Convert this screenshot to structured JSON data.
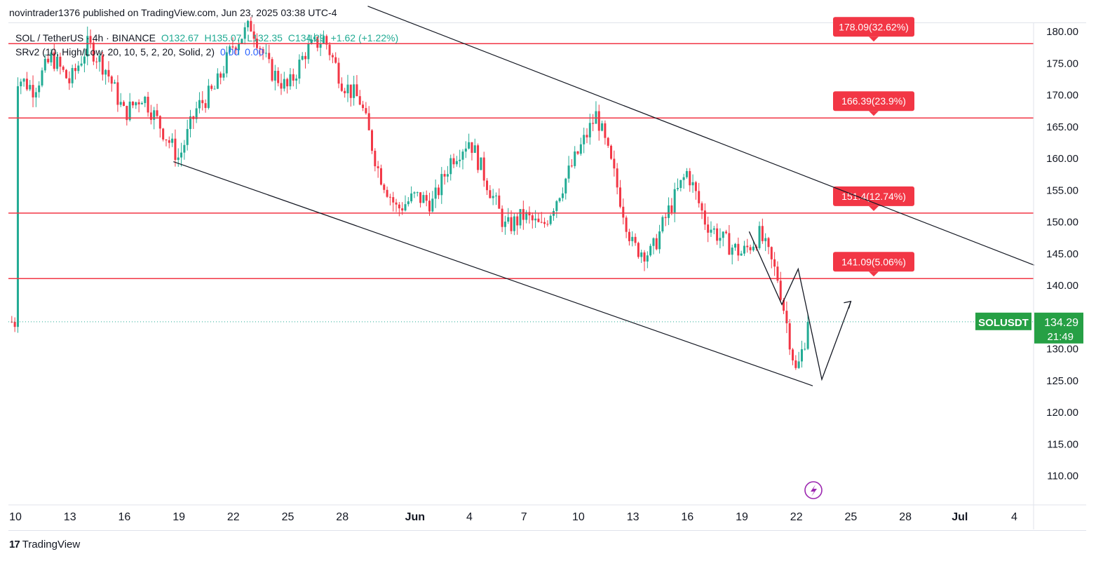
{
  "header": {
    "published_by": "novintrader1376 published on TradingView.com, Jun 23, 2025 03:38 UTC-4"
  },
  "legend": {
    "symbol": "SOL / TetherUS · 4h · BINANCE",
    "open": "O132.67",
    "high": "H135.07",
    "low": "L132.35",
    "close": "C134.29",
    "change": "+1.62 (+1.22%)",
    "indicator": "SRv2 (10, High/Low, 20, 10, 5, 2, 20, Solid, 2)",
    "ind_val1": "0.00",
    "ind_val2": "0.00"
  },
  "footer": {
    "brand": "TradingView"
  },
  "colors": {
    "up": "#22ab94",
    "down": "#f23645",
    "level_line": "#f23645",
    "trendline": "#131722",
    "price_tag": "#26a045"
  },
  "chart_data": {
    "type": "candlestick",
    "symbol": "SOLUSDT",
    "interval": "4h",
    "y_axis": {
      "min": 105,
      "max": 182,
      "ticks": [
        "180.00",
        "175.00",
        "170.00",
        "165.00",
        "160.00",
        "155.00",
        "150.00",
        "145.00",
        "140.00",
        "135.00",
        "130.00",
        "125.00",
        "120.00",
        "115.00",
        "110.00"
      ]
    },
    "x_axis": {
      "start": "2025-05-10",
      "end": "2025-07-05",
      "ticks": [
        {
          "label": "10",
          "day": 0
        },
        {
          "label": "13",
          "day": 3
        },
        {
          "label": "16",
          "day": 6
        },
        {
          "label": "19",
          "day": 9
        },
        {
          "label": "22",
          "day": 12
        },
        {
          "label": "25",
          "day": 15
        },
        {
          "label": "28",
          "day": 18
        },
        {
          "label": "Jun",
          "day": 22
        },
        {
          "label": "4",
          "day": 25
        },
        {
          "label": "7",
          "day": 28
        },
        {
          "label": "10",
          "day": 31
        },
        {
          "label": "13",
          "day": 34
        },
        {
          "label": "16",
          "day": 37
        },
        {
          "label": "19",
          "day": 40
        },
        {
          "label": "22",
          "day": 43
        },
        {
          "label": "25",
          "day": 46
        },
        {
          "label": "28",
          "day": 49
        },
        {
          "label": "Jul",
          "day": 52
        },
        {
          "label": "4",
          "day": 55
        }
      ]
    },
    "price_path": [
      [
        0,
        173
      ],
      [
        1,
        171
      ],
      [
        2,
        176
      ],
      [
        3,
        172
      ],
      [
        4,
        178
      ],
      [
        5,
        174
      ],
      [
        6,
        167
      ],
      [
        7,
        170
      ],
      [
        8,
        165
      ],
      [
        9,
        160
      ],
      [
        10,
        168
      ],
      [
        11,
        171
      ],
      [
        12,
        178
      ],
      [
        13,
        181
      ],
      [
        14,
        174
      ],
      [
        15,
        171
      ],
      [
        16,
        177
      ],
      [
        17,
        179
      ],
      [
        18,
        172
      ],
      [
        19,
        169
      ],
      [
        20,
        158
      ],
      [
        21,
        152
      ],
      [
        22,
        154
      ],
      [
        23,
        153
      ],
      [
        24,
        160
      ],
      [
        25,
        163
      ],
      [
        26,
        156
      ],
      [
        27,
        149
      ],
      [
        28,
        151
      ],
      [
        29,
        149
      ],
      [
        30,
        155
      ],
      [
        31,
        161
      ],
      [
        32,
        167
      ],
      [
        33,
        157
      ],
      [
        34,
        146
      ],
      [
        35,
        145
      ],
      [
        36,
        152
      ],
      [
        37,
        158
      ],
      [
        38,
        150
      ],
      [
        39,
        147
      ],
      [
        40,
        145
      ],
      [
        41,
        148
      ],
      [
        42,
        141
      ],
      [
        43,
        126
      ],
      [
        43.7,
        134.3
      ]
    ],
    "levels": [
      {
        "price": 178.09,
        "label": "178.09(32.62%)"
      },
      {
        "price": 166.39,
        "label": "166.39(23.9%)"
      },
      {
        "price": 151.4,
        "label": "151.4(12.74%)"
      },
      {
        "price": 141.09,
        "label": "141.09(5.06%)"
      }
    ],
    "trendlines": [
      {
        "from": [
          19.4,
          184
        ],
        "to": [
          56.1,
          143.2
        ]
      },
      {
        "from": [
          8.7,
          159.5
        ],
        "to": [
          43.9,
          124.2
        ]
      }
    ],
    "last_price": {
      "name": "SOLUSDT",
      "value": "134.29",
      "countdown": "21:49"
    }
  }
}
